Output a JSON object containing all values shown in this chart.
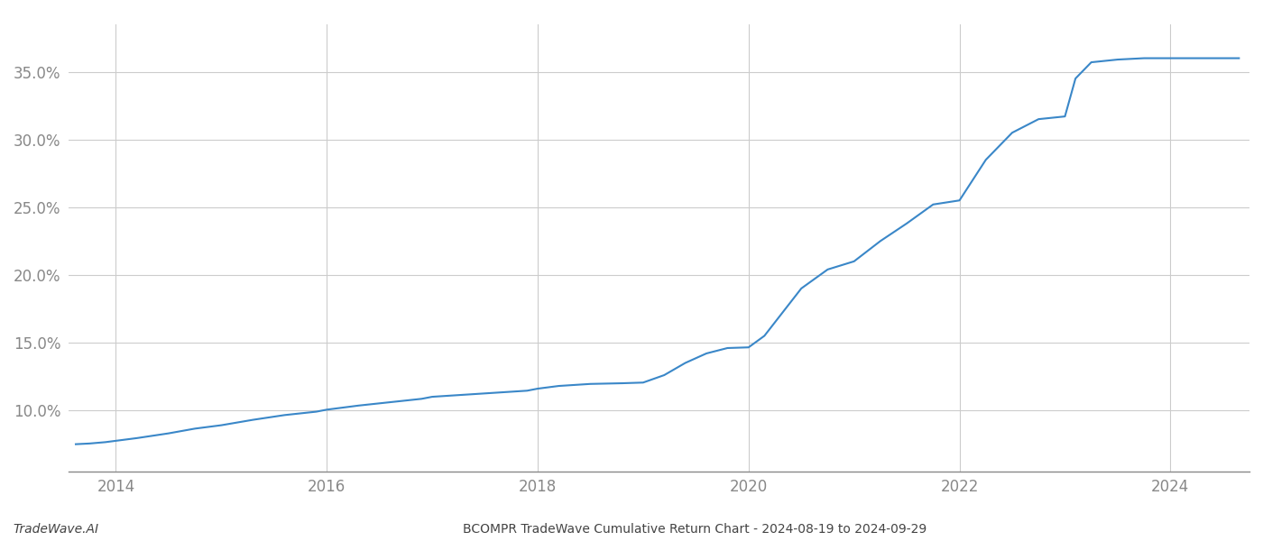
{
  "title": "BCOMPR TradeWave Cumulative Return Chart - 2024-08-19 to 2024-09-29",
  "watermark": "TradeWave.AI",
  "line_color": "#3a87c8",
  "line_width": 1.5,
  "background_color": "#ffffff",
  "grid_color": "#cccccc",
  "xlim": [
    2013.55,
    2024.75
  ],
  "ylim": [
    5.5,
    38.5
  ],
  "x_ticks": [
    2014,
    2016,
    2018,
    2020,
    2022,
    2024
  ],
  "y_ticks": [
    10.0,
    15.0,
    20.0,
    25.0,
    30.0,
    35.0
  ],
  "x_data": [
    2013.62,
    2013.75,
    2013.9,
    2014.0,
    2014.2,
    2014.5,
    2014.75,
    2015.0,
    2015.3,
    2015.6,
    2015.9,
    2016.0,
    2016.3,
    2016.6,
    2016.9,
    2017.0,
    2017.3,
    2017.6,
    2017.9,
    2018.0,
    2018.2,
    2018.5,
    2018.8,
    2019.0,
    2019.2,
    2019.4,
    2019.6,
    2019.8,
    2020.0,
    2020.15,
    2020.3,
    2020.5,
    2020.75,
    2021.0,
    2021.25,
    2021.5,
    2021.75,
    2022.0,
    2022.25,
    2022.5,
    2022.75,
    2023.0,
    2023.1,
    2023.25,
    2023.5,
    2023.75,
    2024.0,
    2024.3,
    2024.65
  ],
  "y_data": [
    7.5,
    7.55,
    7.65,
    7.75,
    7.95,
    8.3,
    8.65,
    8.9,
    9.3,
    9.65,
    9.9,
    10.05,
    10.35,
    10.6,
    10.85,
    11.0,
    11.15,
    11.3,
    11.45,
    11.6,
    11.8,
    11.95,
    12.0,
    12.05,
    12.6,
    13.5,
    14.2,
    14.6,
    14.65,
    15.5,
    17.0,
    19.0,
    20.4,
    21.0,
    22.5,
    23.8,
    25.2,
    25.5,
    28.5,
    30.5,
    31.5,
    31.7,
    34.5,
    35.7,
    35.9,
    36.0,
    36.0,
    36.0,
    36.0
  ]
}
